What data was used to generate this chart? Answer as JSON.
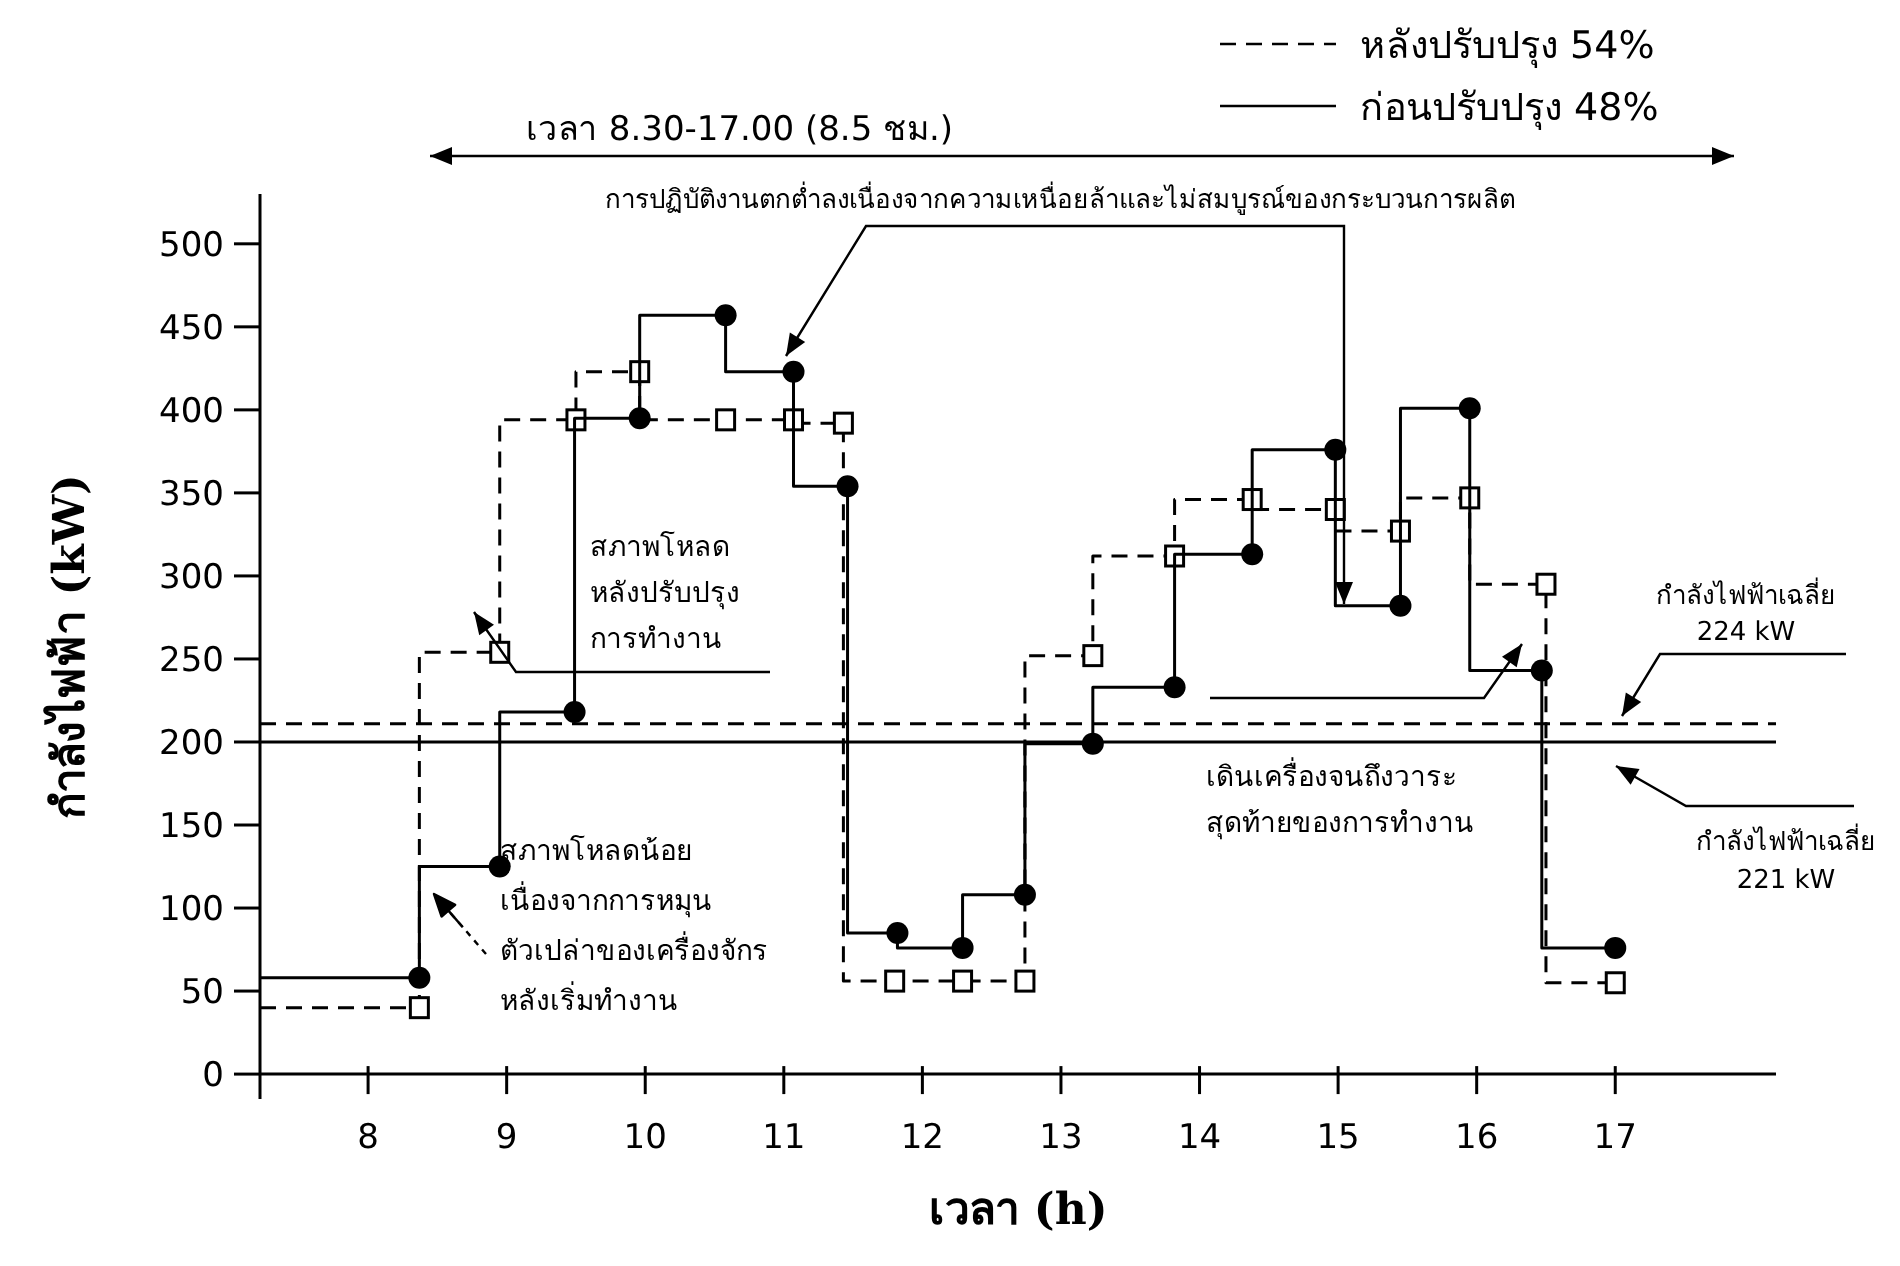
{
  "chart_data": {
    "type": "step",
    "xlabel": "เวลา (h)",
    "ylabel": "กำลังไฟฟ้า (kW)",
    "xlim": [
      7.22,
      18.16
    ],
    "xticks": [
      8,
      9,
      10,
      11,
      12,
      13,
      14,
      15,
      16,
      17
    ],
    "ylim": [
      -15,
      530
    ],
    "yticks": [
      0,
      50,
      100,
      150,
      200,
      250,
      300,
      350,
      400,
      450,
      500
    ],
    "legend": "top right",
    "series": [
      {
        "name": "หลังปรับปรุง 54%",
        "color": "#000000",
        "line_style": "dashed",
        "marker": "square",
        "x": [
          7.22,
          8.37,
          8.95,
          9.5,
          9.96,
          10.58,
          11.07,
          11.43,
          11.8,
          12.29,
          12.74,
          13.23,
          13.82,
          14.38,
          14.98,
          15.45,
          15.95,
          16.5,
          17.0
        ],
        "values": [
          40,
          40,
          254,
          394,
          423,
          394,
          394,
          392,
          56,
          56,
          56,
          252,
          312,
          346,
          340,
          327,
          347,
          295,
          55
        ]
      },
      {
        "name": "ก่อนปรับปรุง 48%",
        "color": "#000000",
        "line_style": "solid",
        "marker": "circle",
        "x": [
          7.22,
          8.37,
          8.95,
          9.49,
          9.96,
          10.58,
          11.07,
          11.46,
          11.82,
          12.29,
          12.74,
          13.23,
          13.82,
          14.38,
          14.98,
          15.45,
          15.95,
          16.47,
          17.0
        ],
        "values": [
          58,
          58,
          125,
          218,
          395,
          457,
          423,
          354,
          85,
          76,
          108,
          199,
          233,
          313,
          376,
          282,
          401,
          243,
          76
        ]
      }
    ],
    "ref_lines": [
      {
        "axis": "y",
        "value": 211,
        "line_style": "dashed",
        "color": "#000000"
      },
      {
        "axis": "y",
        "value": 200,
        "line_style": "solid",
        "color": "#000000"
      }
    ],
    "annotations": [
      "เวลา 8.30-17.00 (8.5 ชม.)",
      "การปฏิบัติงานตกต่ำลงเนื่องจากความเหนื่อยล้าและไม่สมบูรณ์ของกระบวนการผลิต",
      "สภาพโหลด\nหลังปรับปรุง\nการทำงาน",
      "สภาพโหลดน้อย\nเนื่องจากการหมุน\nตัวเปล่าของเครื่องจักร\nหลังเริ่มทำงาน",
      "เดินเครื่องจนถึงวาระ\nสุดท้ายของการทำงาน",
      "กำลังไฟฟ้าเฉลี่ย\n224 kW",
      "กำลังไฟฟ้าเฉลี่ย\n221 kW"
    ]
  }
}
